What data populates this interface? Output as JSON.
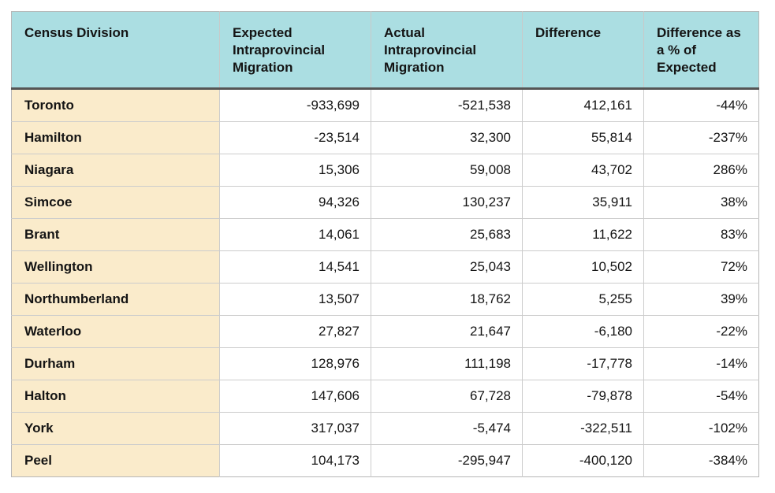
{
  "colors": {
    "header_bg": "#abdee2",
    "first_column_bg": "#faebcb",
    "header_rule": "#555555",
    "grid_line": "#cccccc",
    "text": "#141414"
  },
  "chart_data": {
    "type": "table",
    "title": "",
    "columns": [
      "Census Division",
      "Expected Intraprovincial Migration",
      "Actual Intraprovincial Migration",
      "Difference",
      "Difference as a % of Expected"
    ],
    "rows": [
      {
        "division": "Toronto",
        "expected": "-933,699",
        "actual": "-521,538",
        "difference": "412,161",
        "pct_of_expected": "-44%"
      },
      {
        "division": "Hamilton",
        "expected": "-23,514",
        "actual": "32,300",
        "difference": "55,814",
        "pct_of_expected": "-237%"
      },
      {
        "division": "Niagara",
        "expected": "15,306",
        "actual": "59,008",
        "difference": "43,702",
        "pct_of_expected": "286%"
      },
      {
        "division": "Simcoe",
        "expected": "94,326",
        "actual": "130,237",
        "difference": "35,911",
        "pct_of_expected": "38%"
      },
      {
        "division": "Brant",
        "expected": "14,061",
        "actual": "25,683",
        "difference": "11,622",
        "pct_of_expected": "83%"
      },
      {
        "division": "Wellington",
        "expected": "14,541",
        "actual": "25,043",
        "difference": "10,502",
        "pct_of_expected": "72%"
      },
      {
        "division": "Northumberland",
        "expected": "13,507",
        "actual": "18,762",
        "difference": "5,255",
        "pct_of_expected": "39%"
      },
      {
        "division": "Waterloo",
        "expected": "27,827",
        "actual": "21,647",
        "difference": "-6,180",
        "pct_of_expected": "-22%"
      },
      {
        "division": "Durham",
        "expected": "128,976",
        "actual": "111,198",
        "difference": "-17,778",
        "pct_of_expected": "-14%"
      },
      {
        "division": "Halton",
        "expected": "147,606",
        "actual": "67,728",
        "difference": "-79,878",
        "pct_of_expected": "-54%"
      },
      {
        "division": "York",
        "expected": "317,037",
        "actual": "-5,474",
        "difference": "-322,511",
        "pct_of_expected": "-102%"
      },
      {
        "division": "Peel",
        "expected": "104,173",
        "actual": "-295,947",
        "difference": "-400,120",
        "pct_of_expected": "-384%"
      }
    ]
  }
}
